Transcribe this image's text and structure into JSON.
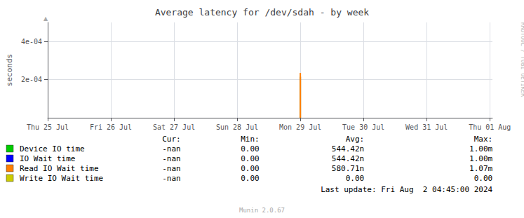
{
  "chart_data": {
    "type": "bar",
    "title": "Average latency for /dev/sdah - by week",
    "ylabel": "seconds",
    "xlim": [
      1721862000,
      1722470400
    ],
    "xticks": [
      {
        "value": 1721862000,
        "label": "Thu 25 Jul"
      },
      {
        "value": 1721948400,
        "label": "Fri 26 Jul"
      },
      {
        "value": 1722034800,
        "label": "Sat 27 Jul"
      },
      {
        "value": 1722121200,
        "label": "Sun 28 Jul"
      },
      {
        "value": 1722207600,
        "label": "Mon 29 Jul"
      },
      {
        "value": 1722294000,
        "label": "Tue 30 Jul"
      },
      {
        "value": 1722380400,
        "label": "Wed 31 Jul"
      },
      {
        "value": 1722466800,
        "label": "Thu 01 Aug"
      }
    ],
    "ylim": [
      0,
      0.0005
    ],
    "yticks": [
      {
        "value": 0.0002,
        "label": "2e-04"
      },
      {
        "value": 0.0004,
        "label": "4e-04"
      }
    ],
    "grid": true,
    "x": [
      1722207600
    ],
    "columns": [
      "Cur:",
      "Min:",
      "Avg:",
      "Max:"
    ],
    "series": [
      {
        "color": "#556b00",
        "values": [
          0.000215
        ]
      },
      {
        "name": "Device IO time",
        "color": "#00cc00",
        "values": [
          null
        ],
        "stats": [
          "-nan",
          "0.00",
          "544.42n",
          "1.00m"
        ]
      },
      {
        "name": "IO Wait time",
        "color": "#0000ff",
        "values": [
          null
        ],
        "stats": [
          "-nan",
          "0.00",
          "544.42n",
          "1.00m"
        ]
      },
      {
        "name": "Read IO Wait time",
        "color": "#ff7f00",
        "values": [
          0.000235
        ],
        "stats": [
          "-nan",
          "0.00",
          "580.71n",
          "1.07m"
        ]
      },
      {
        "name": "Write IO Wait time",
        "color": "#cccc00",
        "values": [
          null
        ],
        "stats": [
          "-nan",
          "0.00",
          "0.00",
          "0.00"
        ]
      }
    ],
    "annotations": [
      "▲",
      "RRDTOOL / TOBI OETIKER",
      "Last update: Fri Aug  2 04:45:00 2024",
      "Munin 2.0.67"
    ]
  }
}
